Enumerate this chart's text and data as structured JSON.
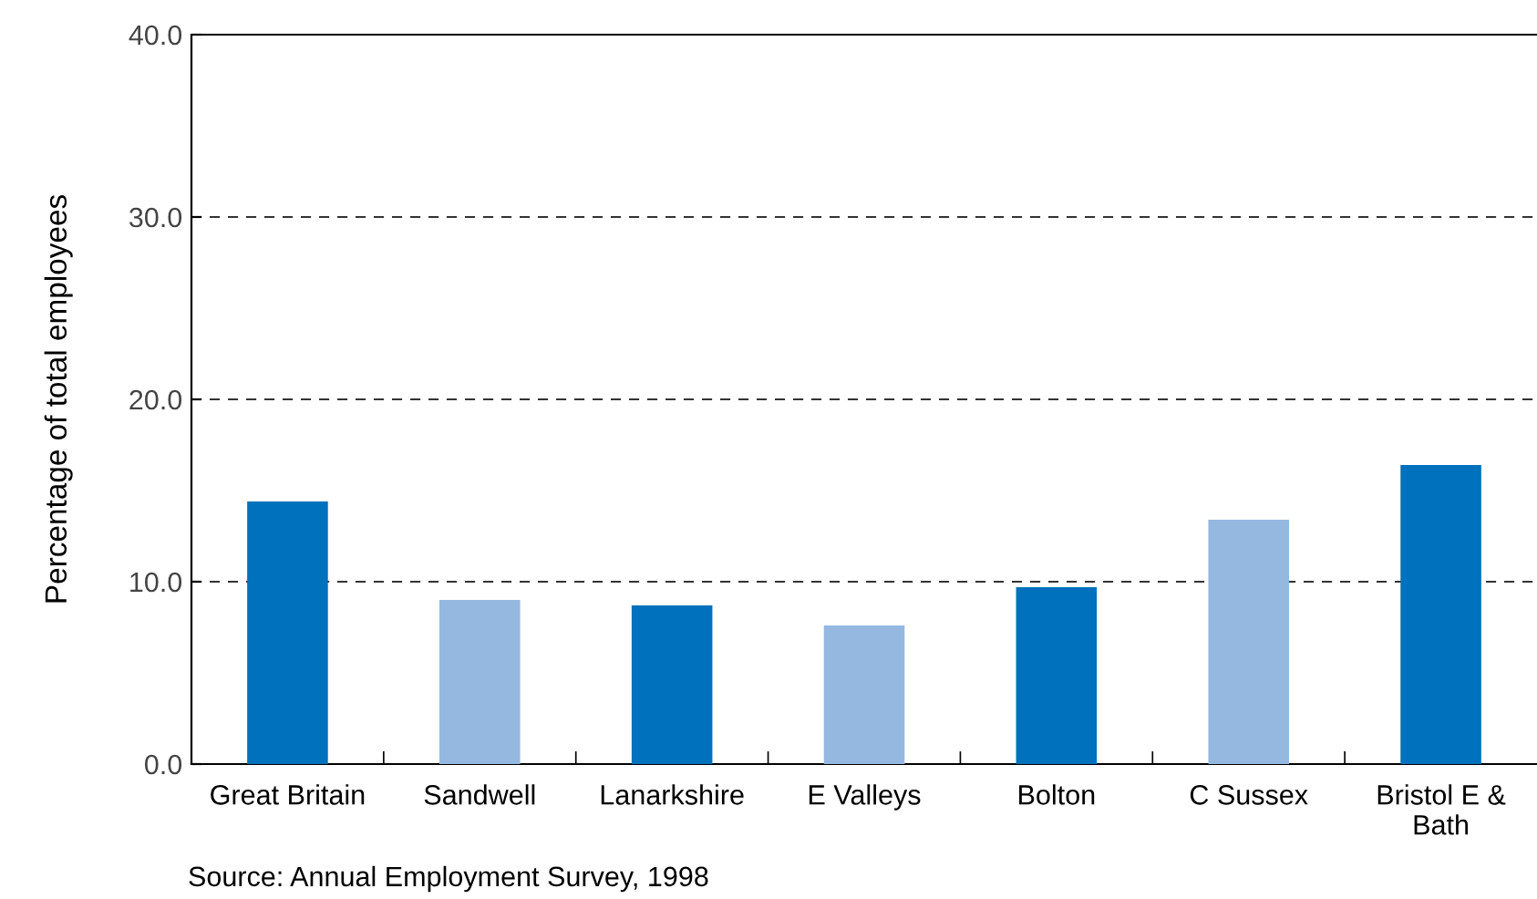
{
  "chart_data": {
    "type": "bar",
    "ylabel": "Percentage of total employees",
    "categories": [
      "Great Britain",
      "Sandwell",
      "Lanarkshire",
      "E Valleys",
      "Bolton",
      "C Sussex",
      "Bristol E &\nBath"
    ],
    "values": [
      14.4,
      9.0,
      8.7,
      7.6,
      9.7,
      13.4,
      16.4
    ],
    "colors": [
      "#0071bc",
      "#95b8e0",
      "#0071bc",
      "#95b8e0",
      "#0071bc",
      "#95b8e0",
      "#0071bc"
    ],
    "ylim": [
      0,
      40
    ],
    "yticks": [
      {
        "value": 0,
        "label": "0.0"
      },
      {
        "value": 10,
        "label": "10.0"
      },
      {
        "value": 20,
        "label": "20.0"
      },
      {
        "value": 30,
        "label": "30.0"
      },
      {
        "value": 40,
        "label": "40.0"
      }
    ],
    "grid": "y",
    "annotations": [
      "Source: Annual Employment Survey, 1998"
    ]
  }
}
